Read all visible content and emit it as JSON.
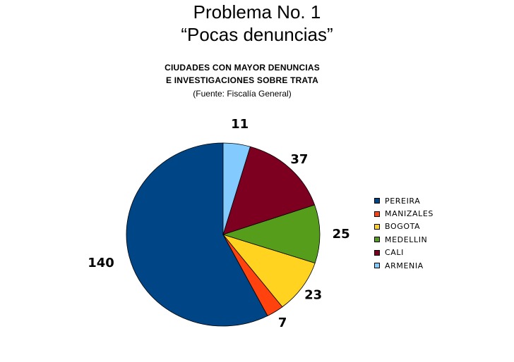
{
  "slide": {
    "title_line1": "Problema No. 1",
    "title_line2": "“Pocas denuncias”"
  },
  "chart_data": {
    "type": "pie",
    "title_line1": "CIUDADES CON MAYOR DENUNCIAS",
    "title_line2": "E INVESTIGACIONES SOBRE TRATA",
    "subtitle": "(Fuente: Fiscalía General)",
    "legend_position": "right",
    "slices": [
      {
        "label": "PEREIRA",
        "value": 140,
        "color": "#004586"
      },
      {
        "label": "MANIZALES",
        "value": 7,
        "color": "#ff420e"
      },
      {
        "label": "BOGOTA",
        "value": 23,
        "color": "#ffd320"
      },
      {
        "label": "MEDELLIN",
        "value": 25,
        "color": "#579d1c"
      },
      {
        "label": "CALI",
        "value": 37,
        "color": "#7e0021"
      },
      {
        "label": "ARMENIA",
        "value": 11,
        "color": "#83caff"
      }
    ]
  }
}
